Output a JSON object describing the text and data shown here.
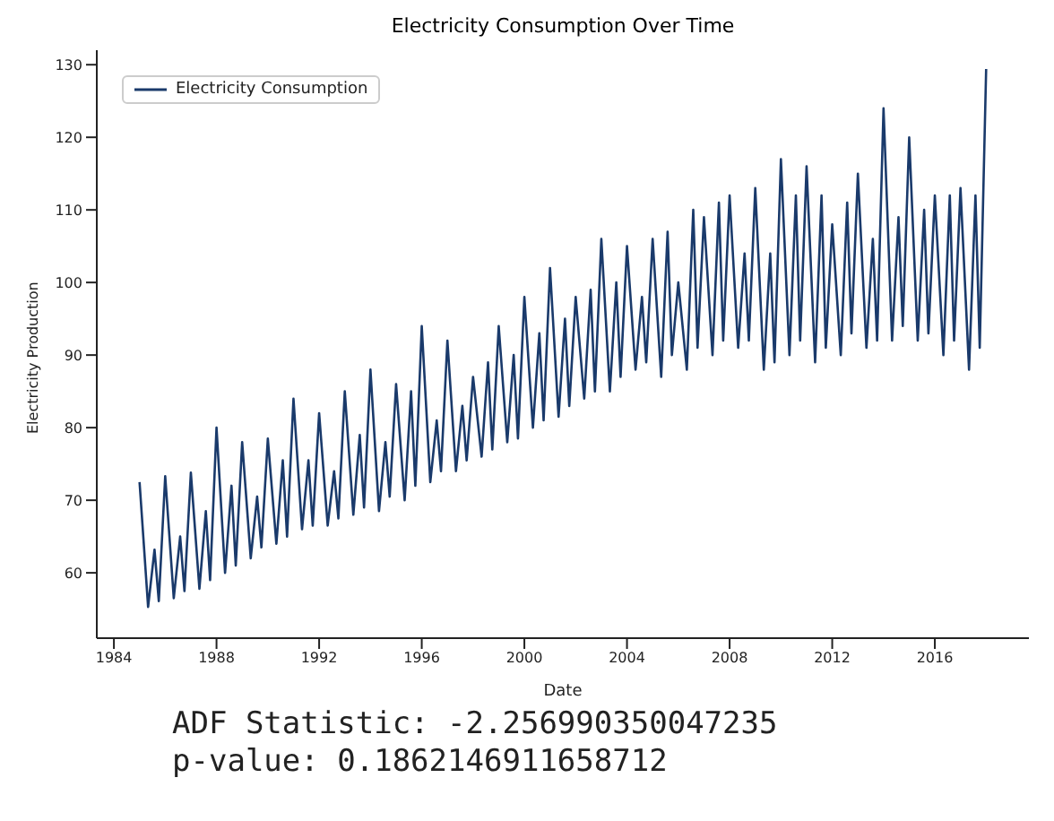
{
  "chart_data": {
    "type": "line",
    "title": "Electricity Consumption Over Time",
    "xlabel": "Date",
    "ylabel": "Electricity Production",
    "x": [
      "1985-01",
      "1985-05",
      "1985-08",
      "1985-10",
      "1986-01",
      "1986-05",
      "1986-08",
      "1986-10",
      "1987-01",
      "1987-05",
      "1987-08",
      "1987-10",
      "1988-01",
      "1988-05",
      "1988-08",
      "1988-10",
      "1989-01",
      "1989-05",
      "1989-08",
      "1989-10",
      "1990-01",
      "1990-05",
      "1990-08",
      "1990-10",
      "1991-01",
      "1991-05",
      "1991-08",
      "1991-10",
      "1992-01",
      "1992-05",
      "1992-08",
      "1992-10",
      "1993-01",
      "1993-05",
      "1993-08",
      "1993-10",
      "1994-01",
      "1994-05",
      "1994-08",
      "1994-10",
      "1995-01",
      "1995-05",
      "1995-08",
      "1995-10",
      "1996-01",
      "1996-05",
      "1996-08",
      "1996-10",
      "1997-01",
      "1997-05",
      "1997-08",
      "1997-10",
      "1998-01",
      "1998-05",
      "1998-08",
      "1998-10",
      "1999-01",
      "1999-05",
      "1999-08",
      "1999-10",
      "2000-01",
      "2000-05",
      "2000-08",
      "2000-10",
      "2001-01",
      "2001-05",
      "2001-08",
      "2001-10",
      "2002-01",
      "2002-05",
      "2002-08",
      "2002-10",
      "2003-01",
      "2003-05",
      "2003-08",
      "2003-10",
      "2004-01",
      "2004-05",
      "2004-08",
      "2004-10",
      "2005-01",
      "2005-05",
      "2005-08",
      "2005-10",
      "2006-01",
      "2006-05",
      "2006-08",
      "2006-10",
      "2007-01",
      "2007-05",
      "2007-08",
      "2007-10",
      "2008-01",
      "2008-05",
      "2008-08",
      "2008-10",
      "2009-01",
      "2009-05",
      "2009-08",
      "2009-10",
      "2010-01",
      "2010-05",
      "2010-08",
      "2010-10",
      "2011-01",
      "2011-05",
      "2011-08",
      "2011-10",
      "2012-01",
      "2012-05",
      "2012-08",
      "2012-10",
      "2013-01",
      "2013-05",
      "2013-08",
      "2013-10",
      "2014-01",
      "2014-05",
      "2014-08",
      "2014-10",
      "2015-01",
      "2015-05",
      "2015-08",
      "2015-10",
      "2016-01",
      "2016-05",
      "2016-08",
      "2016-10",
      "2017-01",
      "2017-05",
      "2017-08",
      "2017-10",
      "2018-01"
    ],
    "series": [
      {
        "name": "Electricity Consumption",
        "color": "#1a3a6b",
        "values": [
          72.5,
          55.3,
          63.2,
          56.1,
          73.3,
          56.5,
          65.0,
          57.5,
          73.8,
          57.8,
          68.5,
          59.0,
          80.0,
          60.0,
          72.0,
          61.0,
          78.0,
          62.0,
          70.5,
          63.5,
          78.5,
          64.0,
          75.5,
          65.0,
          84.0,
          66.0,
          75.5,
          66.5,
          82.0,
          66.5,
          74.0,
          67.5,
          85.0,
          68.0,
          79.0,
          69.0,
          88.0,
          68.5,
          78.0,
          70.5,
          86.0,
          70.0,
          85.0,
          72.0,
          94.0,
          72.5,
          81.0,
          74.0,
          92.0,
          74.0,
          83.0,
          75.5,
          87.0,
          76.0,
          89.0,
          77.0,
          94.0,
          78.0,
          90.0,
          78.5,
          98.0,
          80.0,
          93.0,
          81.0,
          102.0,
          81.5,
          95.0,
          83.0,
          98.0,
          84.0,
          99.0,
          85.0,
          106.0,
          85.0,
          100.0,
          87.0,
          105.0,
          88.0,
          98.0,
          89.0,
          106.0,
          87.0,
          107.0,
          90.0,
          100.0,
          88.0,
          110.0,
          91.0,
          109.0,
          90.0,
          111.0,
          92.0,
          112.0,
          91.0,
          104.0,
          92.0,
          113.0,
          88.0,
          104.0,
          89.0,
          117.0,
          90.0,
          112.0,
          92.0,
          116.0,
          89.0,
          112.0,
          91.0,
          108.0,
          90.0,
          111.0,
          93.0,
          115.0,
          91.0,
          106.0,
          92.0,
          124.0,
          92.0,
          109.0,
          94.0,
          120.0,
          92.0,
          110.0,
          93.0,
          112.0,
          90.0,
          112.0,
          92.0,
          113.0,
          88.0,
          112.0,
          91.0,
          129.4
        ]
      }
    ],
    "xlim": [
      "1983-05",
      "2019-09"
    ],
    "xticks": [
      {
        "value": "1984",
        "label": "1984"
      },
      {
        "value": "1988",
        "label": "1988"
      },
      {
        "value": "1992",
        "label": "1992"
      },
      {
        "value": "1996",
        "label": "1996"
      },
      {
        "value": "2000",
        "label": "2000"
      },
      {
        "value": "2004",
        "label": "2004"
      },
      {
        "value": "2008",
        "label": "2008"
      },
      {
        "value": "2012",
        "label": "2012"
      },
      {
        "value": "2016",
        "label": "2016"
      }
    ],
    "ylim": [
      51,
      132
    ],
    "yticks": [
      60,
      70,
      80,
      90,
      100,
      110,
      120,
      130
    ],
    "legend": "top left",
    "grid": false,
    "annotations": [
      "ADF Statistic: -2.256990350047235",
      "p-value: 0.1862146911658712"
    ]
  }
}
